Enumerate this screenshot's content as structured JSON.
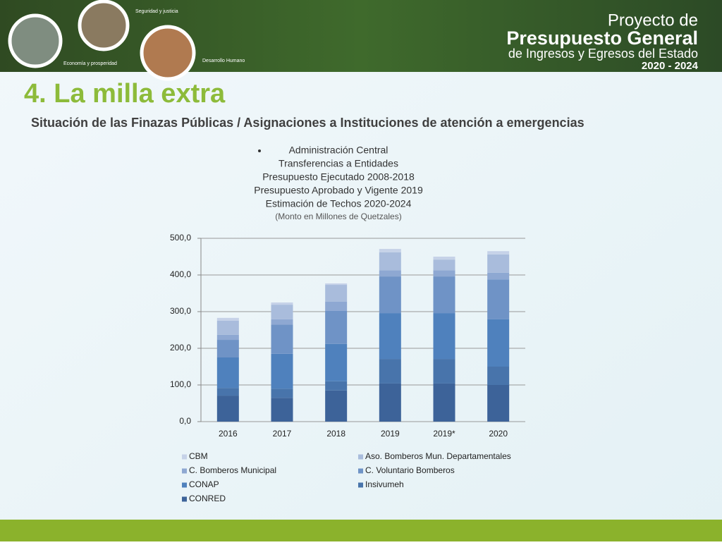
{
  "header": {
    "brand_lines": [
      "Proyecto de",
      "Presupuesto General",
      "de Ingresos y Egresos del Estado",
      "2020 - 2024"
    ],
    "icons": [
      "Seguridad y justicia",
      "Economía y prosperidad",
      "Desarrollo Humano"
    ]
  },
  "slide": {
    "title": "4. La milla extra",
    "subtitle": "Situación de las Finazas Públicas / Asignaciones a Instituciones de atención a emergencias"
  },
  "chart_data": {
    "type": "stacked_bar",
    "title_lines": [
      "Administración Central",
      "Transferencias a Entidades",
      "Presupuesto Ejecutado 2008-2018",
      "Presupuesto Aprobado y Vigente 2019",
      "Estimación de Techos 2020-2024",
      "(Monto en Millones de Quetzales)"
    ],
    "categories": [
      "2016",
      "2017",
      "2018",
      "2019",
      "2019*",
      "2020"
    ],
    "series": [
      {
        "name": "CONRED",
        "color": "#3d6399",
        "values": [
          71,
          65,
          85,
          104,
          104,
          100
        ]
      },
      {
        "name": "Insivumeh",
        "color": "#4874ab",
        "values": [
          21,
          25,
          25,
          67,
          67,
          50
        ]
      },
      {
        "name": "CONAP",
        "color": "#4f81bd",
        "values": [
          83,
          95,
          102,
          125,
          125,
          129
        ]
      },
      {
        "name": "C. Voluntario Bomberos",
        "color": "#6f93c6",
        "values": [
          48,
          80,
          90,
          100,
          100,
          109
        ]
      },
      {
        "name": "C. Bomberos Municipal",
        "color": "#8ea8d2",
        "values": [
          14,
          14,
          25,
          17,
          17,
          18
        ]
      },
      {
        "name": "Aso. Bomberos Mun. Departamentales",
        "color": "#a9bcdc",
        "values": [
          38,
          40,
          46,
          49,
          29,
          50
        ]
      },
      {
        "name": "CBM",
        "color": "#c6d2e8",
        "values": [
          8,
          6,
          4,
          9,
          8,
          9
        ]
      }
    ],
    "ylim": [
      0,
      500
    ],
    "yticks": [
      {
        "value": 0,
        "label": "0,0"
      },
      {
        "value": 100,
        "label": "100,0"
      },
      {
        "value": 200,
        "label": "200,0"
      },
      {
        "value": 300,
        "label": "300,0"
      },
      {
        "value": 400,
        "label": "400,0"
      },
      {
        "value": 500,
        "label": "500,0"
      }
    ],
    "grid": true
  }
}
